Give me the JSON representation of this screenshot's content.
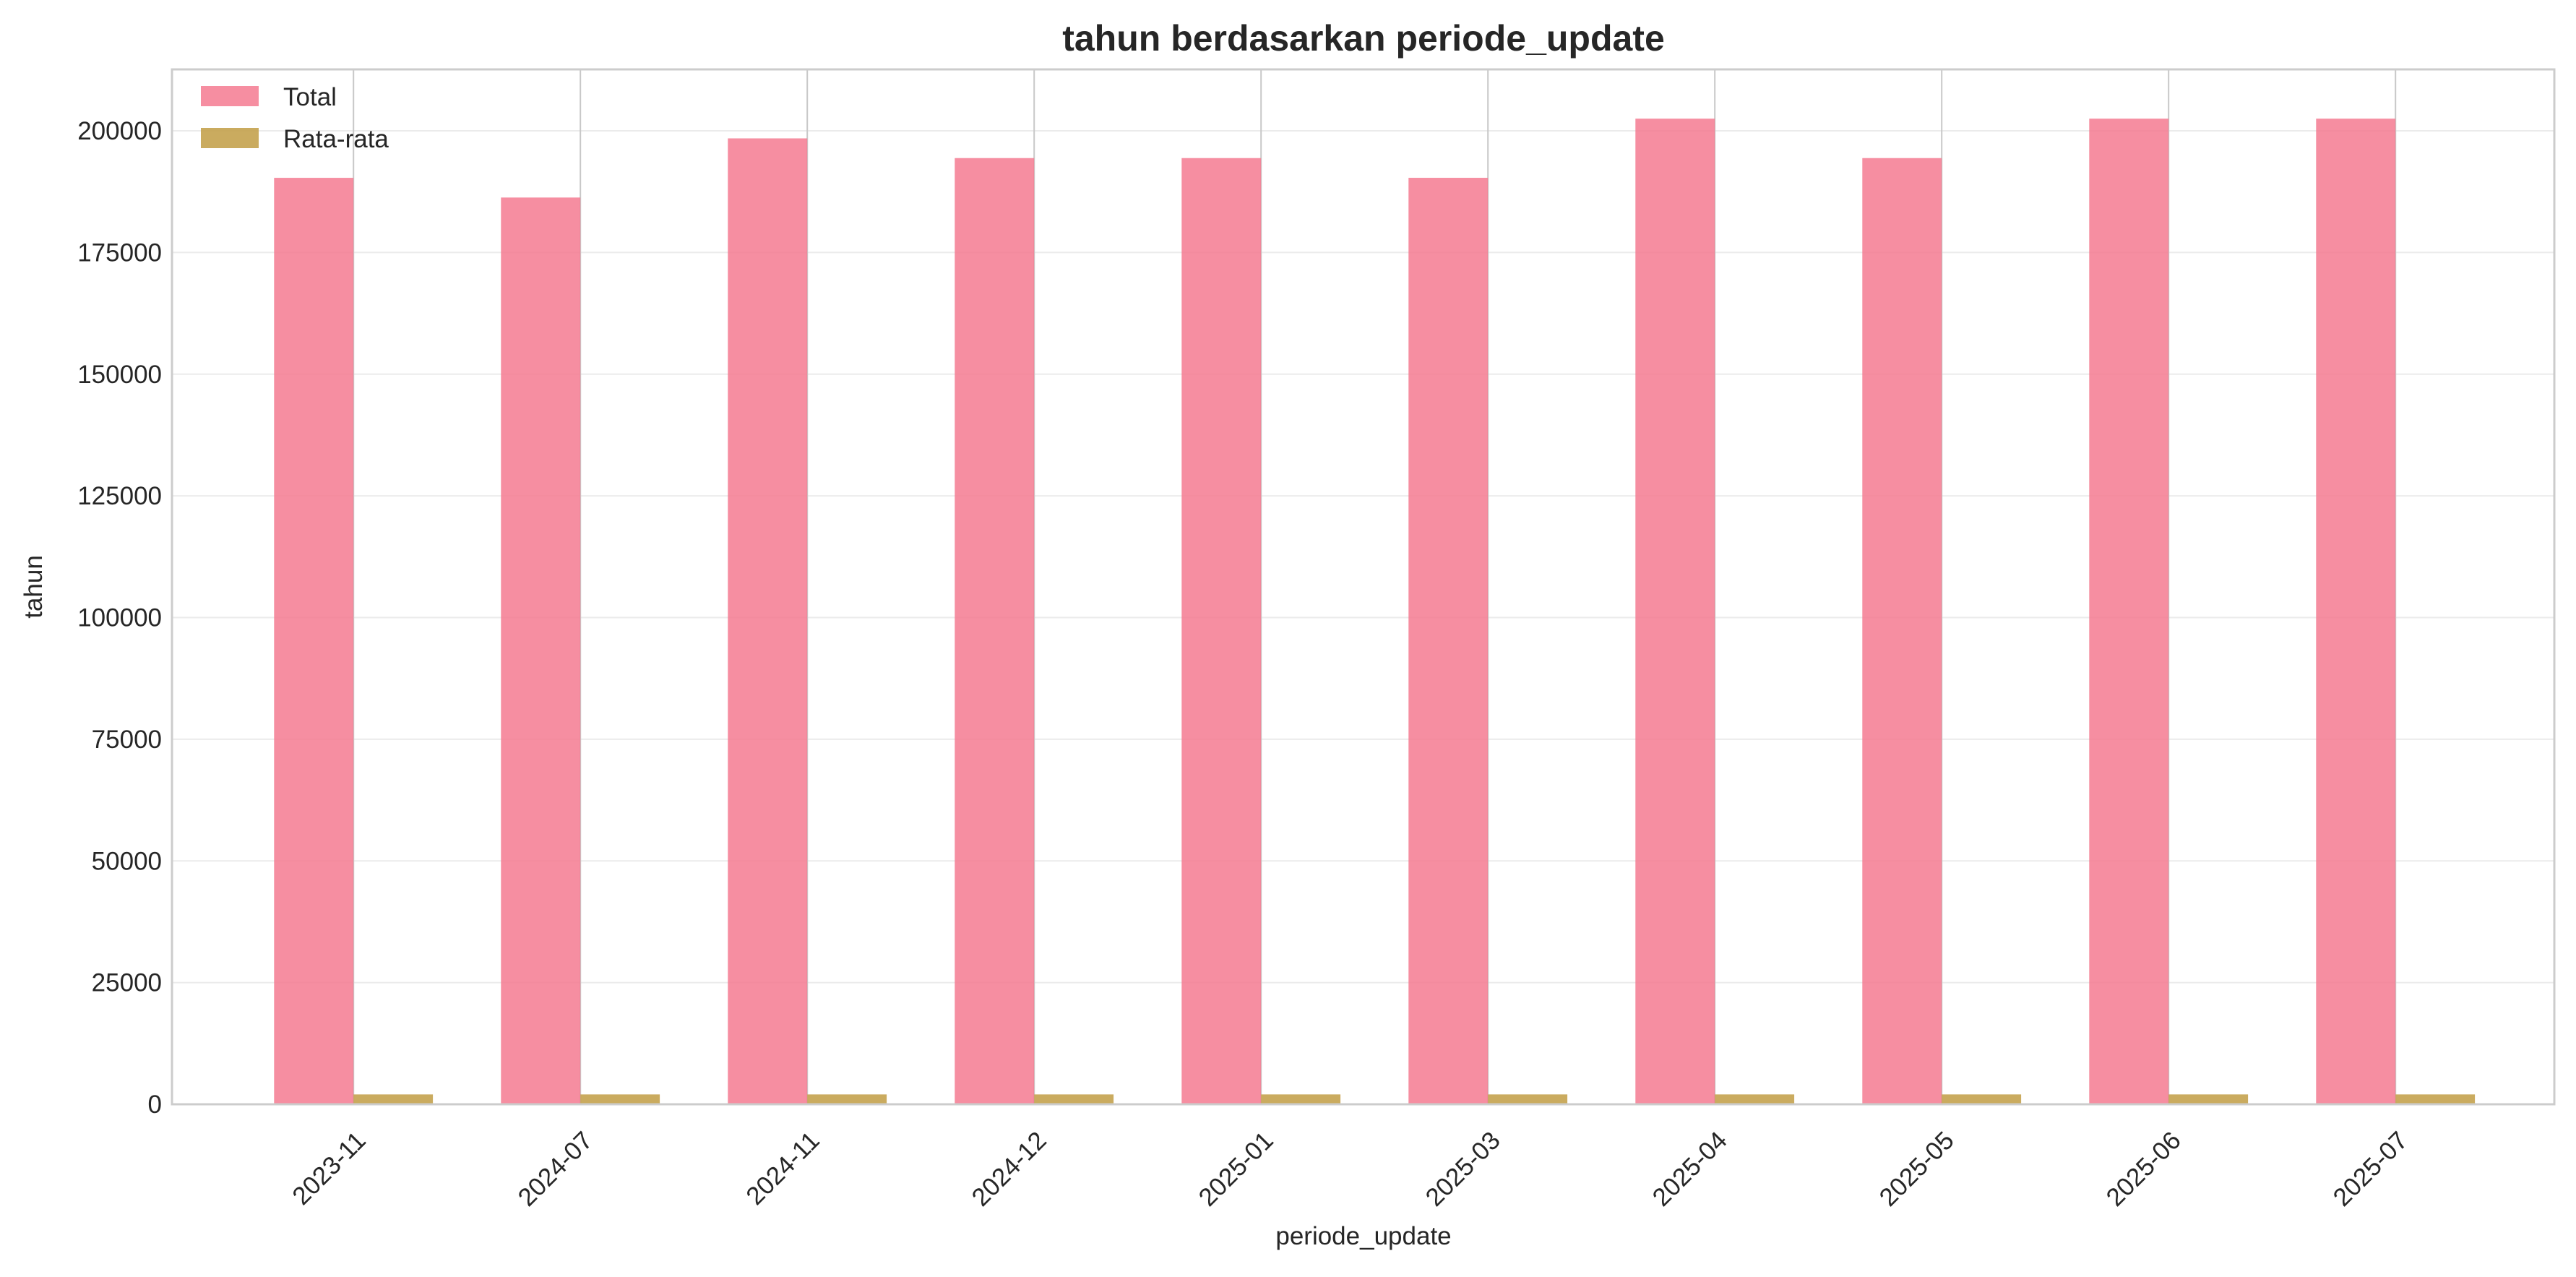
{
  "chart_data": {
    "type": "bar",
    "title": "tahun berdasarkan periode_update",
    "xlabel": "periode_update",
    "ylabel": "tahun",
    "categories": [
      "2023-11",
      "2024-07",
      "2024-11",
      "2024-12",
      "2025-01",
      "2025-03",
      "2025-04",
      "2025-05",
      "2025-06",
      "2025-07"
    ],
    "series": [
      {
        "name": "Total",
        "color": "#f47a90",
        "values": [
          190345,
          186295,
          198450,
          194400,
          194400,
          190350,
          202500,
          194400,
          202500,
          202500
        ]
      },
      {
        "name": "Rata-rata",
        "color": "#c4a24e",
        "values": [
          2023,
          2024,
          2024,
          2024,
          2025,
          2025,
          2025,
          2025,
          2025,
          2025
        ]
      }
    ],
    "ylim": [
      0,
      212625
    ],
    "yticks": [
      0,
      25000,
      50000,
      75000,
      100000,
      125000,
      150000,
      175000,
      200000
    ],
    "grid": true,
    "legend_position": "top-left"
  }
}
